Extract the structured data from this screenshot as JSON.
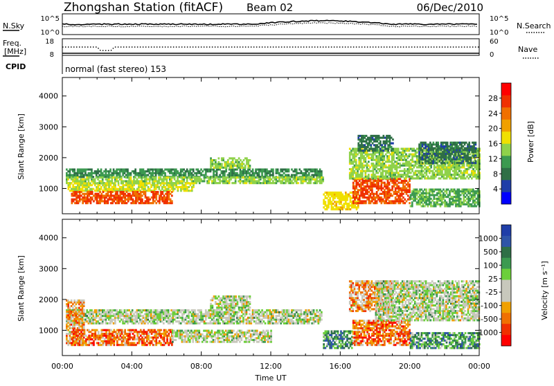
{
  "header": {
    "station": "Zhongshan Station (fitACF)",
    "beam": "Beam 02",
    "date": "06/Dec/2010"
  },
  "noise_panel": {
    "left_label": "N.Sky",
    "right_label": "N.Search",
    "left_ticks": [
      "10^5",
      "10^0"
    ],
    "right_ticks": [
      "10^5",
      "10^0"
    ]
  },
  "freq_panel": {
    "left_label_line1": "Freq.",
    "left_label_line2": "[MHz]",
    "right_label": "Nave",
    "left_ticks": [
      "18",
      "8"
    ],
    "right_ticks": [
      "60",
      "0"
    ]
  },
  "cpid_panel": {
    "label": "CPID",
    "text": "normal (fast stereo) 153"
  },
  "colors": {
    "power": [
      "#0000ff",
      "#1f3ea8",
      "#2f6f46",
      "#3c9a50",
      "#8fd24a",
      "#f0e000",
      "#f0a000",
      "#f07000",
      "#f03000",
      "#ff0000"
    ],
    "velocity": [
      "#1f3ea8",
      "#2f55a8",
      "#2f6f46",
      "#3c9a50",
      "#6ccf3a",
      "#c8c8bc",
      "#c8c8bc",
      "#f0a000",
      "#f07000",
      "#f03000",
      "#ff0000"
    ]
  },
  "chart_data": [
    {
      "type": "heatmap",
      "name": "Power",
      "xlabel": "",
      "ylabel": "Slant Range [km]",
      "xlim": [
        0,
        24
      ],
      "ylim": [
        180,
        4600
      ],
      "yticks": [
        "1000",
        "2000",
        "3000",
        "4000"
      ],
      "xticks": [
        "00:00",
        "04:00",
        "08:00",
        "12:00",
        "16:00",
        "20:00",
        "00:00"
      ],
      "colorbar_label": "Power [dB]",
      "colorbar_ticks": [
        "4",
        "8",
        "12",
        "16",
        "20",
        "24",
        "28"
      ],
      "colorbar_range": [
        0,
        32
      ],
      "regions": [
        {
          "t0": 0.2,
          "t1": 14.9,
          "r0": 1350,
          "r1": 1650,
          "level": 10
        },
        {
          "t0": 0.2,
          "t1": 15.0,
          "r0": 1150,
          "r1": 1350,
          "level": 14
        },
        {
          "t0": 0.3,
          "t1": 7.5,
          "r0": 900,
          "r1": 1150,
          "level": 16
        },
        {
          "t0": 0.5,
          "t1": 6.3,
          "r0": 500,
          "r1": 900,
          "level": 26
        },
        {
          "t0": 8.5,
          "t1": 10.8,
          "r0": 1650,
          "r1": 2000,
          "level": 14
        },
        {
          "t0": 15.0,
          "t1": 17.0,
          "r0": 300,
          "r1": 900,
          "level": 18
        },
        {
          "t0": 16.7,
          "t1": 20.0,
          "r0": 500,
          "r1": 1300,
          "level": 26
        },
        {
          "t0": 16.5,
          "t1": 24.0,
          "r0": 1300,
          "r1": 2300,
          "level": 14
        },
        {
          "t0": 17.0,
          "t1": 19.0,
          "r0": 2200,
          "r1": 2700,
          "level": 8
        },
        {
          "t0": 20.5,
          "t1": 23.8,
          "r0": 1800,
          "r1": 2500,
          "level": 8
        },
        {
          "t0": 20.0,
          "t1": 24.0,
          "r0": 400,
          "r1": 1000,
          "level": 12
        }
      ]
    },
    {
      "type": "heatmap",
      "name": "Velocity",
      "xlabel": "Time UT",
      "ylabel": "Slant Range [km]",
      "xlim": [
        0,
        24
      ],
      "ylim": [
        180,
        4600
      ],
      "yticks": [
        "1000",
        "2000",
        "3000",
        "4000"
      ],
      "xticks": [
        "00:00",
        "04:00",
        "08:00",
        "12:00",
        "16:00",
        "20:00",
        "00:00"
      ],
      "colorbar_label": "Velocity [m s⁻¹]",
      "colorbar_ticks": [
        "1000",
        "500",
        "100",
        "25",
        "-25",
        "-100",
        "-500",
        "-1000"
      ],
      "regions": [
        {
          "t0": 0.2,
          "t1": 14.9,
          "r0": 1200,
          "r1": 1650,
          "level": 5
        },
        {
          "t0": 0.2,
          "t1": 1.2,
          "r0": 500,
          "r1": 2000,
          "level": 7
        },
        {
          "t0": 0.5,
          "t1": 6.3,
          "r0": 500,
          "r1": 1000,
          "level": 8
        },
        {
          "t0": 6.3,
          "t1": 12.0,
          "r0": 600,
          "r1": 1000,
          "level": 5
        },
        {
          "t0": 8.5,
          "t1": 10.8,
          "r0": 1650,
          "r1": 2100,
          "level": 5
        },
        {
          "t0": 15.0,
          "t1": 16.7,
          "r0": 400,
          "r1": 1000,
          "level": 3
        },
        {
          "t0": 16.7,
          "t1": 20.0,
          "r0": 500,
          "r1": 1300,
          "level": 8
        },
        {
          "t0": 16.5,
          "t1": 19.0,
          "r0": 1600,
          "r1": 2600,
          "level": 7
        },
        {
          "t0": 18.0,
          "t1": 24.0,
          "r0": 1300,
          "r1": 2600,
          "level": 5
        },
        {
          "t0": 20.0,
          "t1": 24.0,
          "r0": 400,
          "r1": 900,
          "level": 3
        }
      ]
    }
  ]
}
